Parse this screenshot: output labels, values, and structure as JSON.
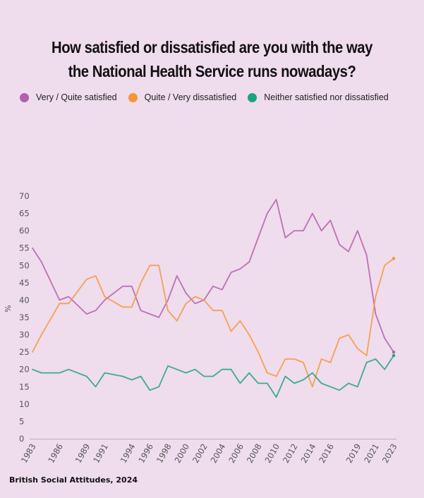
{
  "title_lines": [
    "How satisfied or dissatisfied are you with the way",
    "the National Health Service runs nowadays?"
  ],
  "source": "British Social Attitudes, 2024",
  "chart_data": {
    "type": "line",
    "title": "How satisfied or dissatisfied are you with the way the National Health Service runs nowadays?",
    "xlabel": "",
    "ylabel": "%",
    "ylim": [
      0,
      70
    ],
    "xlim": [
      1983,
      2023
    ],
    "yticks": [
      0,
      5,
      10,
      15,
      20,
      25,
      30,
      35,
      40,
      45,
      50,
      55,
      60,
      65,
      70
    ],
    "xticks": [
      1983,
      1986,
      1989,
      1991,
      1994,
      1996,
      1998,
      2000,
      2002,
      2004,
      2006,
      2008,
      2010,
      2012,
      2014,
      2016,
      2019,
      2021,
      2023
    ],
    "x": [
      1983,
      1984,
      1986,
      1987,
      1989,
      1990,
      1991,
      1993,
      1994,
      1995,
      1996,
      1997,
      1998,
      1999,
      2000,
      2001,
      2002,
      2003,
      2004,
      2005,
      2006,
      2007,
      2008,
      2009,
      2010,
      2011,
      2012,
      2013,
      2014,
      2015,
      2016,
      2017,
      2018,
      2019,
      2020,
      2021,
      2022,
      2023
    ],
    "series": [
      {
        "name": "Very / Quite satisfied",
        "color": "#b15eb0",
        "values": [
          55,
          51,
          40,
          41,
          36,
          37,
          40,
          44,
          44,
          37,
          36,
          35,
          40,
          47,
          42,
          39,
          40,
          44,
          43,
          48,
          49,
          51,
          58,
          65,
          69,
          58,
          60,
          60,
          65,
          60,
          63,
          56,
          54,
          60,
          53,
          36,
          29,
          25
        ]
      },
      {
        "name": "Quite / Very dissatisfied",
        "color": "#f5963a",
        "values": [
          25,
          30,
          39,
          39,
          46,
          47,
          41,
          38,
          38,
          45,
          50,
          50,
          37,
          34,
          39,
          41,
          40,
          37,
          37,
          31,
          34,
          30,
          25,
          19,
          18,
          23,
          23,
          22,
          15,
          23,
          22,
          29,
          30,
          26,
          24,
          41,
          50,
          52
        ]
      },
      {
        "name": "Neither satisfied nor dissatisfied",
        "color": "#1aa383",
        "values": [
          20,
          19,
          19,
          20,
          18,
          15,
          19,
          18,
          17,
          18,
          14,
          15,
          21,
          20,
          19,
          20,
          18,
          18,
          20,
          20,
          16,
          19,
          16,
          16,
          12,
          18,
          16,
          17,
          19,
          16,
          15,
          14,
          16,
          15,
          22,
          23,
          20,
          24
        ]
      }
    ]
  }
}
